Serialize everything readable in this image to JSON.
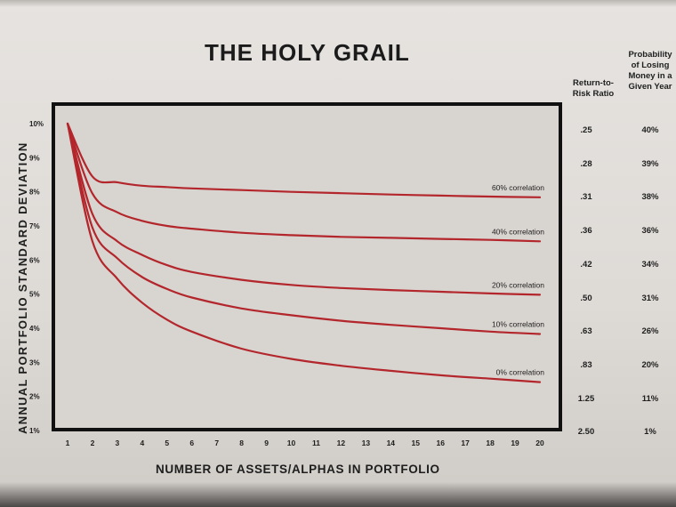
{
  "chart_data": {
    "type": "line",
    "title": "THE HOLY GRAIL",
    "xlabel": "NUMBER OF ASSETS/ALPHAS IN PORTFOLIO",
    "ylabel": "ANNUAL PORTFOLIO STANDARD DEVIATION",
    "x_ticks": [
      "1",
      "2",
      "3",
      "4",
      "5",
      "6",
      "7",
      "8",
      "9",
      "10",
      "11",
      "12",
      "13",
      "14",
      "15",
      "16",
      "17",
      "18",
      "19",
      "20"
    ],
    "y_ticks": [
      "1%",
      "2%",
      "3%",
      "4%",
      "5%",
      "6%",
      "7%",
      "8%",
      "9%",
      "10%"
    ],
    "xlim": [
      1,
      20
    ],
    "ylim": [
      1,
      10.5
    ],
    "grid": false,
    "series": [
      {
        "name": "60% correlation",
        "x": [
          1,
          2,
          3,
          4,
          5,
          6,
          8,
          10,
          12,
          14,
          16,
          18,
          20
        ],
        "values": [
          10.0,
          8.45,
          8.28,
          8.18,
          8.14,
          8.1,
          8.05,
          8.0,
          7.96,
          7.92,
          7.89,
          7.86,
          7.84
        ]
      },
      {
        "name": "40% correlation",
        "x": [
          1,
          2,
          3,
          4,
          5,
          6,
          8,
          10,
          12,
          14,
          16,
          18,
          20
        ],
        "values": [
          10.0,
          7.95,
          7.4,
          7.15,
          7.0,
          6.92,
          6.8,
          6.73,
          6.68,
          6.65,
          6.62,
          6.59,
          6.55
        ]
      },
      {
        "name": "20% correlation",
        "x": [
          1,
          2,
          3,
          4,
          5,
          6,
          8,
          10,
          12,
          14,
          16,
          18,
          20
        ],
        "values": [
          10.0,
          7.35,
          6.55,
          6.15,
          5.85,
          5.65,
          5.42,
          5.27,
          5.18,
          5.12,
          5.07,
          5.02,
          4.98
        ]
      },
      {
        "name": "10% correlation",
        "x": [
          1,
          2,
          3,
          4,
          5,
          6,
          8,
          10,
          12,
          14,
          16,
          18,
          20
        ],
        "values": [
          10.0,
          6.95,
          6.05,
          5.5,
          5.15,
          4.9,
          4.58,
          4.38,
          4.22,
          4.1,
          4.0,
          3.9,
          3.83
        ]
      },
      {
        "name": "0% correlation",
        "x": [
          1,
          2,
          3,
          4,
          5,
          6,
          8,
          10,
          12,
          14,
          16,
          18,
          20
        ],
        "values": [
          10.0,
          6.55,
          5.45,
          4.75,
          4.25,
          3.9,
          3.4,
          3.1,
          2.9,
          2.75,
          2.62,
          2.52,
          2.42
        ]
      }
    ],
    "table": {
      "return_to_risk_header": "Return-to-\nRisk Ratio",
      "prob_loss_header": "Probability\nof Losing\nMoney in a\nGiven Year",
      "return_to_risk": [
        ".25",
        ".28",
        ".31",
        ".36",
        ".42",
        ".50",
        ".63",
        ".83",
        "1.25",
        "2.50"
      ],
      "prob_loss": [
        "40%",
        "39%",
        "38%",
        "36%",
        "34%",
        "31%",
        "26%",
        "20%",
        "11%",
        "1%"
      ]
    },
    "line_color": "#b3262b"
  }
}
